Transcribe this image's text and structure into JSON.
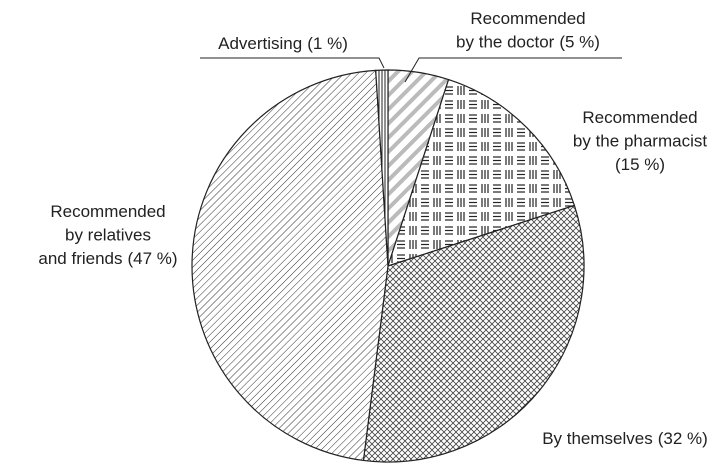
{
  "chart_data": {
    "type": "pie",
    "categories": [
      [
        "Recommended",
        "by the doctor"
      ],
      [
        "Recommended",
        "by the pharmacist"
      ],
      [
        "By themselves"
      ],
      [
        "Recommended",
        "by relatives",
        "and friends"
      ],
      [
        "Advertising"
      ]
    ],
    "values": [
      5,
      15,
      32,
      47,
      1
    ],
    "value_labels": [
      "(5 %)",
      "(15 %)",
      "(32 %)",
      "(47 %)",
      "(1 %)"
    ],
    "patterns": [
      "diagonal-wide",
      "bars-grid",
      "crosshatch",
      "diagonal",
      "vertical"
    ]
  }
}
